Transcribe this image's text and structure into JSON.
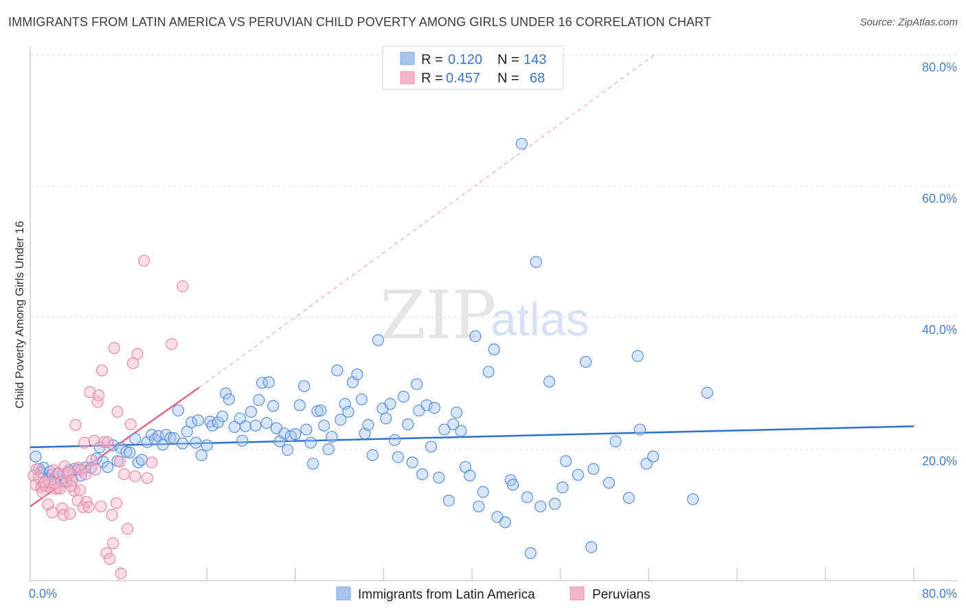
{
  "title": "IMMIGRANTS FROM LATIN AMERICA VS PERUVIAN CHILD POVERTY AMONG GIRLS UNDER 16 CORRELATION CHART",
  "source": "Source: ZipAtlas.com",
  "watermark": {
    "zip": "ZIP",
    "atlas": "atlas"
  },
  "stats_box": {
    "rows": [
      {
        "r_label": "R =",
        "r_value": "0.120",
        "n_label": "N =",
        "n_value": "143",
        "color": "#a9c4ee"
      },
      {
        "r_label": "R =",
        "r_value": "0.457",
        "n_label": "N =",
        "n_value": "68",
        "color": "#f5b3c8"
      }
    ]
  },
  "legend": [
    {
      "label": "Immigrants from Latin America",
      "color": "#a9c4ee"
    },
    {
      "label": "Peruvians",
      "color": "#f5b3c8"
    }
  ],
  "chart_data": {
    "type": "scatter",
    "xlabel": "",
    "ylabel": "Child Poverty Among Girls Under 16",
    "xlim": [
      0,
      80
    ],
    "ylim": [
      0,
      80
    ],
    "x_tick_labels": [
      "0.0%",
      "80.0%"
    ],
    "y_tick_labels": [
      "20.0%",
      "40.0%",
      "60.0%",
      "80.0%"
    ],
    "y_ticks": [
      20,
      40,
      60,
      80
    ],
    "grid": true,
    "legend_position": "bottom-center",
    "series": [
      {
        "name": "Immigrants from Latin America",
        "color": "#5b8ed8",
        "fill": "#a9c4ee",
        "trend": {
          "x0": 0,
          "y0": 20.3,
          "x1": 80,
          "y1": 23.5,
          "color": "#2f6fce"
        },
        "points": [
          [
            0.5,
            18.9
          ],
          [
            0.8,
            17.0
          ],
          [
            1.0,
            16.5
          ],
          [
            1.2,
            17.2
          ],
          [
            1.5,
            15.4
          ],
          [
            1.8,
            16.6
          ],
          [
            2.0,
            16.1
          ],
          [
            2.3,
            15.8
          ],
          [
            2.5,
            16.3
          ],
          [
            2.8,
            15.1
          ],
          [
            3.0,
            16.2
          ],
          [
            3.2,
            15.0
          ],
          [
            3.5,
            16.8
          ],
          [
            3.8,
            15.3
          ],
          [
            4.0,
            17.0
          ],
          [
            4.3,
            16.9
          ],
          [
            4.6,
            16.0
          ],
          [
            5.0,
            17.2
          ],
          [
            5.5,
            17.2
          ],
          [
            6.0,
            18.6
          ],
          [
            6.3,
            20.3
          ],
          [
            6.6,
            18.1
          ],
          [
            7.0,
            17.3
          ],
          [
            7.5,
            20.6
          ],
          [
            7.9,
            18.2
          ],
          [
            8.2,
            20.2
          ],
          [
            8.7,
            19.6
          ],
          [
            9.0,
            19.5
          ],
          [
            9.5,
            21.6
          ],
          [
            9.8,
            18.0
          ],
          [
            10.1,
            18.4
          ],
          [
            10.6,
            21.1
          ],
          [
            11.0,
            22.2
          ],
          [
            11.3,
            21.5
          ],
          [
            11.6,
            22.0
          ],
          [
            12.0,
            20.7
          ],
          [
            12.3,
            22.2
          ],
          [
            12.7,
            21.7
          ],
          [
            13.0,
            21.7
          ],
          [
            13.4,
            25.9
          ],
          [
            13.8,
            20.9
          ],
          [
            14.2,
            22.7
          ],
          [
            14.6,
            24.1
          ],
          [
            15.0,
            21.0
          ],
          [
            15.2,
            24.4
          ],
          [
            15.5,
            19.1
          ],
          [
            16.0,
            20.6
          ],
          [
            16.3,
            24.2
          ],
          [
            16.5,
            23.6
          ],
          [
            17.0,
            24.1
          ],
          [
            17.4,
            25.0
          ],
          [
            17.7,
            28.5
          ],
          [
            18.0,
            27.6
          ],
          [
            18.5,
            23.4
          ],
          [
            19.0,
            24.7
          ],
          [
            19.2,
            21.3
          ],
          [
            19.5,
            23.5
          ],
          [
            20.0,
            25.7
          ],
          [
            20.4,
            23.6
          ],
          [
            20.7,
            27.5
          ],
          [
            21.0,
            30.1
          ],
          [
            21.4,
            24.0
          ],
          [
            21.6,
            30.2
          ],
          [
            22.0,
            26.6
          ],
          [
            22.3,
            23.2
          ],
          [
            22.6,
            21.2
          ],
          [
            23.0,
            22.4
          ],
          [
            23.3,
            19.9
          ],
          [
            23.6,
            22.0
          ],
          [
            24.0,
            22.3
          ],
          [
            24.4,
            26.7
          ],
          [
            24.8,
            29.6
          ],
          [
            25.0,
            23.0
          ],
          [
            25.4,
            21.0
          ],
          [
            25.6,
            17.8
          ],
          [
            26.0,
            25.8
          ],
          [
            26.3,
            25.9
          ],
          [
            26.6,
            23.6
          ],
          [
            27.0,
            20.0
          ],
          [
            27.3,
            21.9
          ],
          [
            27.8,
            32.0
          ],
          [
            28.1,
            24.5
          ],
          [
            28.5,
            26.9
          ],
          [
            28.8,
            25.7
          ],
          [
            29.2,
            30.2
          ],
          [
            29.6,
            31.4
          ],
          [
            30.0,
            27.6
          ],
          [
            30.3,
            22.4
          ],
          [
            30.6,
            23.7
          ],
          [
            31.0,
            19.1
          ],
          [
            31.5,
            36.6
          ],
          [
            31.9,
            26.2
          ],
          [
            32.2,
            24.7
          ],
          [
            32.6,
            26.9
          ],
          [
            33.0,
            21.4
          ],
          [
            33.3,
            18.8
          ],
          [
            33.8,
            28.0
          ],
          [
            34.2,
            23.8
          ],
          [
            34.6,
            18.0
          ],
          [
            35.0,
            29.9
          ],
          [
            35.2,
            25.9
          ],
          [
            35.5,
            16.2
          ],
          [
            35.9,
            26.7
          ],
          [
            36.3,
            20.4
          ],
          [
            36.6,
            26.3
          ],
          [
            37.0,
            15.7
          ],
          [
            37.5,
            23.0
          ],
          [
            37.9,
            12.2
          ],
          [
            38.3,
            23.8
          ],
          [
            38.6,
            25.6
          ],
          [
            39.0,
            22.8
          ],
          [
            39.4,
            17.3
          ],
          [
            39.8,
            16.0
          ],
          [
            40.3,
            37.2
          ],
          [
            40.6,
            11.3
          ],
          [
            41.0,
            13.5
          ],
          [
            41.5,
            31.8
          ],
          [
            42.0,
            35.2
          ],
          [
            42.3,
            9.7
          ],
          [
            43.0,
            8.9
          ],
          [
            43.5,
            15.3
          ],
          [
            43.7,
            14.6
          ],
          [
            44.5,
            66.5
          ],
          [
            45.0,
            12.7
          ],
          [
            45.3,
            4.2
          ],
          [
            45.8,
            48.5
          ],
          [
            46.2,
            11.3
          ],
          [
            47.0,
            30.3
          ],
          [
            47.5,
            11.7
          ],
          [
            48.2,
            14.2
          ],
          [
            48.5,
            18.2
          ],
          [
            49.6,
            16.1
          ],
          [
            50.3,
            33.3
          ],
          [
            50.8,
            5.1
          ],
          [
            51.0,
            17.0
          ],
          [
            52.4,
            14.9
          ],
          [
            53.0,
            21.2
          ],
          [
            54.2,
            12.6
          ],
          [
            55.0,
            34.2
          ],
          [
            55.2,
            23.0
          ],
          [
            55.8,
            17.8
          ],
          [
            56.4,
            18.9
          ],
          [
            60.0,
            12.4
          ],
          [
            61.3,
            28.6
          ]
        ]
      },
      {
        "name": "Peruvians",
        "color": "#e88aa8",
        "fill": "#f5b3c8",
        "trend": {
          "x0": 0,
          "y0": 11.3,
          "x1": 15.3,
          "y1": 29.4,
          "x_ext": 56.5,
          "y_ext": 80,
          "color": "#e0658e"
        },
        "points": [
          [
            0.3,
            16.0
          ],
          [
            0.5,
            14.6
          ],
          [
            0.6,
            17.0
          ],
          [
            0.8,
            15.7
          ],
          [
            1.0,
            14.2
          ],
          [
            1.1,
            13.5
          ],
          [
            1.2,
            14.7
          ],
          [
            1.4,
            14.4
          ],
          [
            1.6,
            11.6
          ],
          [
            1.8,
            14.9
          ],
          [
            2.0,
            10.4
          ],
          [
            2.1,
            16.8
          ],
          [
            2.3,
            14.0
          ],
          [
            2.5,
            14.1
          ],
          [
            2.6,
            16.3
          ],
          [
            2.7,
            14.0
          ],
          [
            2.9,
            11.0
          ],
          [
            3.0,
            10.0
          ],
          [
            3.1,
            17.4
          ],
          [
            3.3,
            15.2
          ],
          [
            3.4,
            16.3
          ],
          [
            3.5,
            16.5
          ],
          [
            3.6,
            10.2
          ],
          [
            3.8,
            15.3
          ],
          [
            4.0,
            13.7
          ],
          [
            4.1,
            23.7
          ],
          [
            4.3,
            12.2
          ],
          [
            4.4,
            17.2
          ],
          [
            4.6,
            16.8
          ],
          [
            4.8,
            11.2
          ],
          [
            4.9,
            21.0
          ],
          [
            5.1,
            12.0
          ],
          [
            5.3,
            11.2
          ],
          [
            5.4,
            28.7
          ],
          [
            5.6,
            18.3
          ],
          [
            5.8,
            21.3
          ],
          [
            5.9,
            16.9
          ],
          [
            6.1,
            27.2
          ],
          [
            6.2,
            28.2
          ],
          [
            6.4,
            11.3
          ],
          [
            6.5,
            32.0
          ],
          [
            6.7,
            21.1
          ],
          [
            6.9,
            4.2
          ],
          [
            7.0,
            21.1
          ],
          [
            7.2,
            3.3
          ],
          [
            7.4,
            10.0
          ],
          [
            7.5,
            5.7
          ],
          [
            7.6,
            35.4
          ],
          [
            7.8,
            11.8
          ],
          [
            7.9,
            25.7
          ],
          [
            8.1,
            18.1
          ],
          [
            8.2,
            1.1
          ],
          [
            8.5,
            16.2
          ],
          [
            8.8,
            7.9
          ],
          [
            9.1,
            23.8
          ],
          [
            9.3,
            33.1
          ],
          [
            9.5,
            15.9
          ],
          [
            9.7,
            34.5
          ],
          [
            10.3,
            48.7
          ],
          [
            10.6,
            15.6
          ],
          [
            11.0,
            18.0
          ],
          [
            12.8,
            36.0
          ],
          [
            13.8,
            44.8
          ],
          [
            4.5,
            13.8
          ],
          [
            5.0,
            16.2
          ],
          [
            1.3,
            15.0
          ],
          [
            2.2,
            14.8
          ],
          [
            3.7,
            14.4
          ]
        ]
      }
    ]
  }
}
